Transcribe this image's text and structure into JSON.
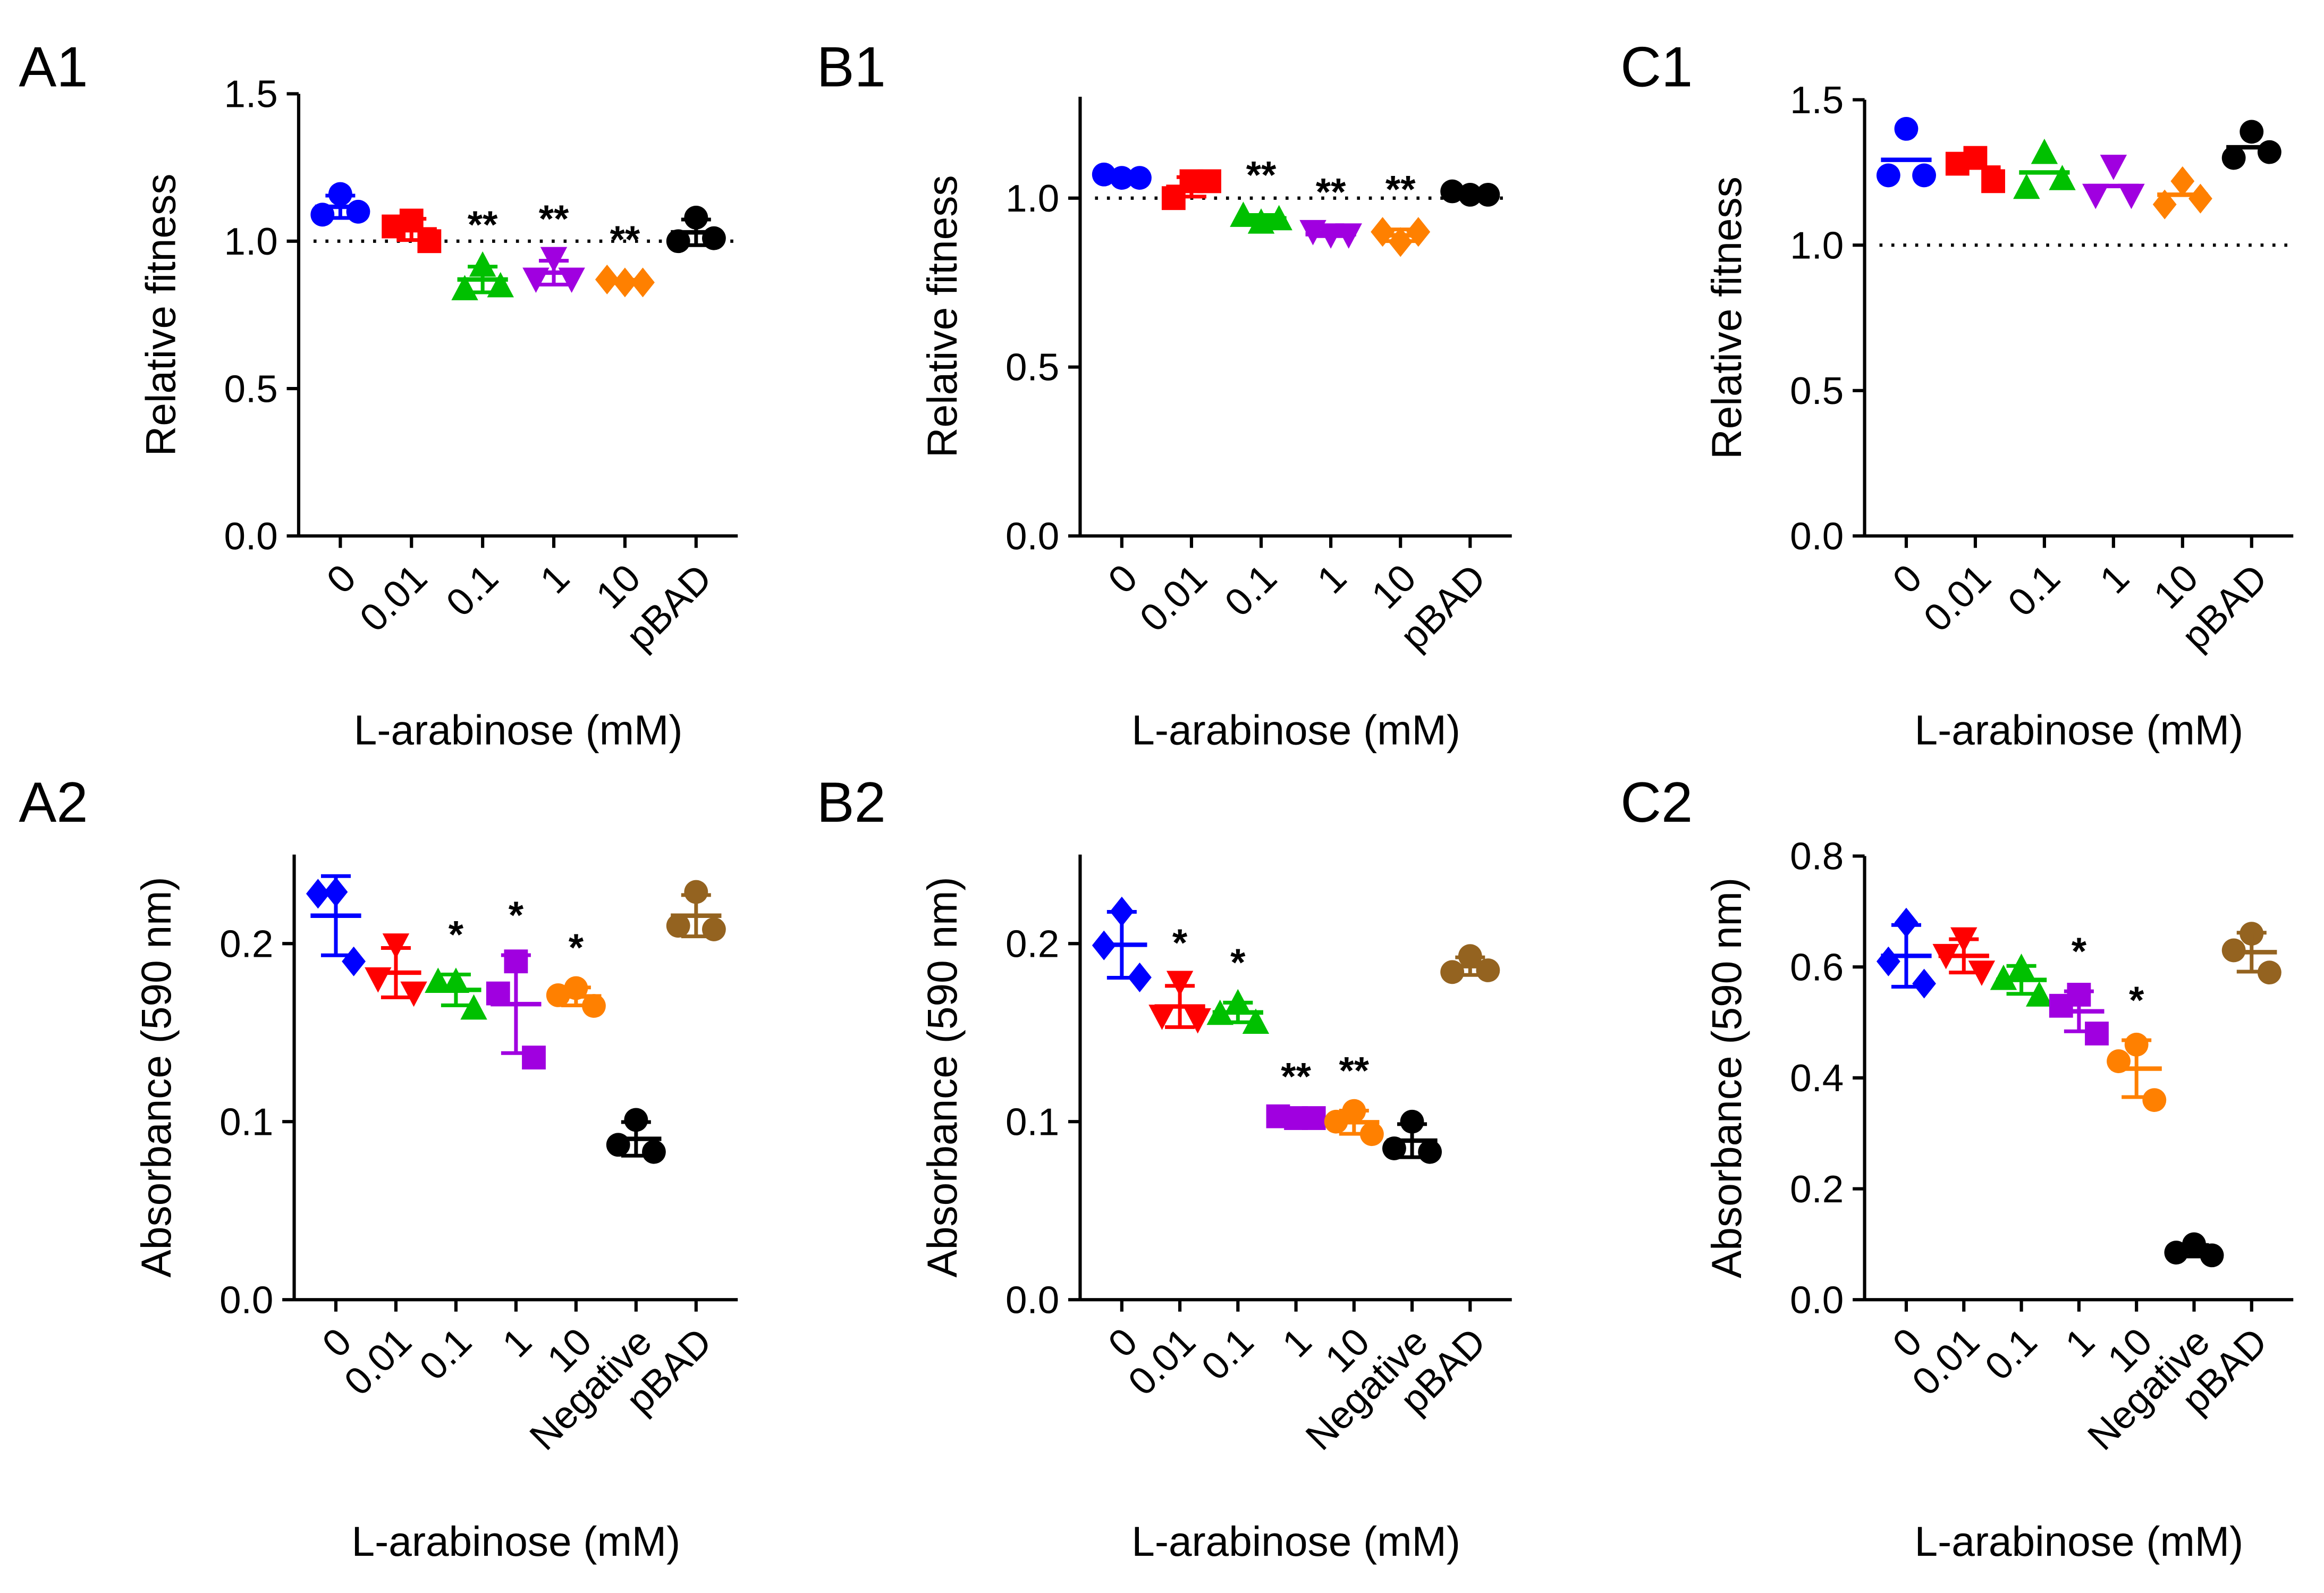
{
  "colors": {
    "blue": "#0000ff",
    "red": "#ff0000",
    "green": "#00c000",
    "purple": "#a000e0",
    "orange": "#ff8000",
    "black": "#000000",
    "brown": "#946320"
  },
  "chart_data": [
    {
      "id": "A1",
      "type": "scatter",
      "ylabel": "Relative fitness",
      "xlabel": "L-arabinose (mM)",
      "ylim": [
        0,
        1.5
      ],
      "yticks": [
        0.0,
        0.5,
        1.0,
        1.5
      ],
      "reference_line": 1.0,
      "error_bars": true,
      "categories": [
        "0",
        "0.01",
        "0.1",
        "1",
        "10",
        "pBAD"
      ],
      "series": [
        {
          "name": "0",
          "color": "blue",
          "marker": "circle",
          "values": [
            1.16,
            1.09,
            1.1
          ],
          "sig": ""
        },
        {
          "name": "0.01",
          "color": "red",
          "marker": "square",
          "values": [
            1.07,
            1.05,
            1.0
          ],
          "sig": ""
        },
        {
          "name": "0.1",
          "color": "green",
          "marker": "triangle",
          "values": [
            0.92,
            0.84,
            0.85
          ],
          "sig": "**"
        },
        {
          "name": "1",
          "color": "purple",
          "marker": "triangle-down",
          "values": [
            0.94,
            0.87,
            0.87
          ],
          "sig": "**"
        },
        {
          "name": "10",
          "color": "orange",
          "marker": "diamond",
          "values": [
            0.86,
            0.87,
            0.86
          ],
          "sig": "**"
        },
        {
          "name": "pBAD",
          "color": "black",
          "marker": "circle",
          "values": [
            1.08,
            1.0,
            1.01
          ],
          "sig": ""
        }
      ]
    },
    {
      "id": "B1",
      "type": "scatter",
      "ylabel": "Relative fitness",
      "xlabel": "L-arabinose (mM)",
      "ylim": [
        0,
        1.3
      ],
      "yticks": [
        0.0,
        0.5,
        1.0
      ],
      "reference_line": 1.0,
      "error_bars": true,
      "categories": [
        "0",
        "0.01",
        "0.1",
        "1",
        "10",
        "pBAD"
      ],
      "series": [
        {
          "name": "0",
          "color": "blue",
          "marker": "circle",
          "values": [
            1.06,
            1.07,
            1.06
          ],
          "sig": ""
        },
        {
          "name": "0.01",
          "color": "red",
          "marker": "square",
          "values": [
            1.05,
            1.0,
            1.05
          ],
          "sig": ""
        },
        {
          "name": "0.1",
          "color": "green",
          "marker": "triangle",
          "values": [
            0.93,
            0.95,
            0.94
          ],
          "sig": "**"
        },
        {
          "name": "1",
          "color": "purple",
          "marker": "triangle-down",
          "values": [
            0.89,
            0.9,
            0.89
          ],
          "sig": "**"
        },
        {
          "name": "10",
          "color": "orange",
          "marker": "diamond",
          "values": [
            0.87,
            0.9,
            0.9
          ],
          "sig": "**"
        },
        {
          "name": "pBAD",
          "color": "black",
          "marker": "circle",
          "values": [
            1.01,
            1.02,
            1.01
          ],
          "sig": ""
        }
      ]
    },
    {
      "id": "C1",
      "type": "scatter",
      "ylabel": "Relative fitness",
      "xlabel": "L-arabinose (mM)",
      "ylim": [
        0,
        1.5
      ],
      "yticks": [
        0.0,
        0.5,
        1.0,
        1.5
      ],
      "reference_line": 1.0,
      "error_bars": false,
      "categories": [
        "0",
        "0.01",
        "0.1",
        "1",
        "10",
        "pBAD"
      ],
      "series": [
        {
          "name": "0",
          "color": "blue",
          "marker": "circle",
          "values": [
            1.4,
            1.24,
            1.24
          ],
          "sig": ""
        },
        {
          "name": "0.01",
          "color": "red",
          "marker": "square",
          "values": [
            1.3,
            1.28,
            1.22
          ],
          "sig": ""
        },
        {
          "name": "0.1",
          "color": "green",
          "marker": "triangle",
          "values": [
            1.32,
            1.2,
            1.23
          ],
          "sig": ""
        },
        {
          "name": "1",
          "color": "purple",
          "marker": "triangle-down",
          "values": [
            1.27,
            1.17,
            1.17
          ],
          "sig": ""
        },
        {
          "name": "10",
          "color": "orange",
          "marker": "diamond",
          "values": [
            1.22,
            1.14,
            1.16
          ],
          "sig": ""
        },
        {
          "name": "pBAD",
          "color": "black",
          "marker": "circle",
          "values": [
            1.39,
            1.3,
            1.32
          ],
          "sig": ""
        }
      ]
    },
    {
      "id": "A2",
      "type": "scatter",
      "ylabel": "Absorbance (590 nm)",
      "xlabel": "L-arabinose (mM)",
      "ylim": [
        0,
        0.25
      ],
      "yticks": [
        0.0,
        0.1,
        0.2
      ],
      "error_bars": true,
      "categories": [
        "0",
        "0.01",
        "0.1",
        "1",
        "10",
        "Negative",
        "pBAD"
      ],
      "series": [
        {
          "name": "0",
          "color": "blue",
          "marker": "diamond",
          "values": [
            0.229,
            0.228,
            0.19
          ],
          "sig": ""
        },
        {
          "name": "0.01",
          "color": "red",
          "marker": "triangle-down",
          "values": [
            0.199,
            0.18,
            0.172
          ],
          "sig": ""
        },
        {
          "name": "0.1",
          "color": "green",
          "marker": "triangle",
          "values": [
            0.179,
            0.179,
            0.164
          ],
          "sig": "*"
        },
        {
          "name": "1",
          "color": "purple",
          "marker": "square",
          "values": [
            0.19,
            0.172,
            0.136
          ],
          "sig": "*"
        },
        {
          "name": "10",
          "color": "orange",
          "marker": "circle",
          "values": [
            0.175,
            0.171,
            0.165
          ],
          "sig": "*"
        },
        {
          "name": "Negative",
          "color": "black",
          "marker": "circle",
          "values": [
            0.101,
            0.087,
            0.083
          ],
          "sig": ""
        },
        {
          "name": "pBAD",
          "color": "brown",
          "marker": "circle",
          "values": [
            0.229,
            0.21,
            0.208
          ],
          "sig": ""
        }
      ]
    },
    {
      "id": "B2",
      "type": "scatter",
      "ylabel": "Absorbance (590 nm)",
      "xlabel": "L-arabinose (mM)",
      "ylim": [
        0,
        0.25
      ],
      "yticks": [
        0.0,
        0.1,
        0.2
      ],
      "error_bars": true,
      "categories": [
        "0",
        "0.01",
        "0.1",
        "1",
        "10",
        "Negative",
        "pBAD"
      ],
      "series": [
        {
          "name": "0",
          "color": "blue",
          "marker": "diamond",
          "values": [
            0.218,
            0.199,
            0.181
          ],
          "sig": ""
        },
        {
          "name": "0.01",
          "color": "red",
          "marker": "triangle-down",
          "values": [
            0.178,
            0.159,
            0.157
          ],
          "sig": "*"
        },
        {
          "name": "0.1",
          "color": "green",
          "marker": "triangle",
          "values": [
            0.167,
            0.161,
            0.156
          ],
          "sig": "*"
        },
        {
          "name": "1",
          "color": "purple",
          "marker": "square",
          "values": [
            0.102,
            0.103,
            0.102
          ],
          "sig": "**"
        },
        {
          "name": "10",
          "color": "orange",
          "marker": "circle",
          "values": [
            0.106,
            0.1,
            0.093
          ],
          "sig": "**"
        },
        {
          "name": "Negative",
          "color": "black",
          "marker": "circle",
          "values": [
            0.1,
            0.085,
            0.083
          ],
          "sig": ""
        },
        {
          "name": "pBAD",
          "color": "brown",
          "marker": "circle",
          "values": [
            0.193,
            0.184,
            0.185
          ],
          "sig": ""
        }
      ]
    },
    {
      "id": "C2",
      "type": "scatter",
      "ylabel": "Absorbance (590 nm)",
      "xlabel": "L-arabinose (mM)",
      "ylim": [
        0,
        0.8
      ],
      "yticks": [
        0.0,
        0.2,
        0.4,
        0.6,
        0.8
      ],
      "error_bars": true,
      "categories": [
        "0",
        "0.01",
        "0.1",
        "1",
        "10",
        "Negative",
        "pBAD"
      ],
      "series": [
        {
          "name": "0",
          "color": "blue",
          "marker": "diamond",
          "values": [
            0.68,
            0.61,
            0.57
          ],
          "sig": ""
        },
        {
          "name": "0.01",
          "color": "red",
          "marker": "triangle-down",
          "values": [
            0.65,
            0.62,
            0.59
          ],
          "sig": ""
        },
        {
          "name": "0.1",
          "color": "green",
          "marker": "triangle",
          "values": [
            0.6,
            0.58,
            0.55
          ],
          "sig": ""
        },
        {
          "name": "1",
          "color": "purple",
          "marker": "square",
          "values": [
            0.55,
            0.53,
            0.48
          ],
          "sig": "*"
        },
        {
          "name": "10",
          "color": "orange",
          "marker": "circle",
          "values": [
            0.46,
            0.43,
            0.36
          ],
          "sig": "*"
        },
        {
          "name": "Negative",
          "color": "black",
          "marker": "circle",
          "values": [
            0.1,
            0.085,
            0.08
          ],
          "sig": ""
        },
        {
          "name": "pBAD",
          "color": "brown",
          "marker": "circle",
          "values": [
            0.66,
            0.63,
            0.59
          ],
          "sig": ""
        }
      ]
    }
  ]
}
